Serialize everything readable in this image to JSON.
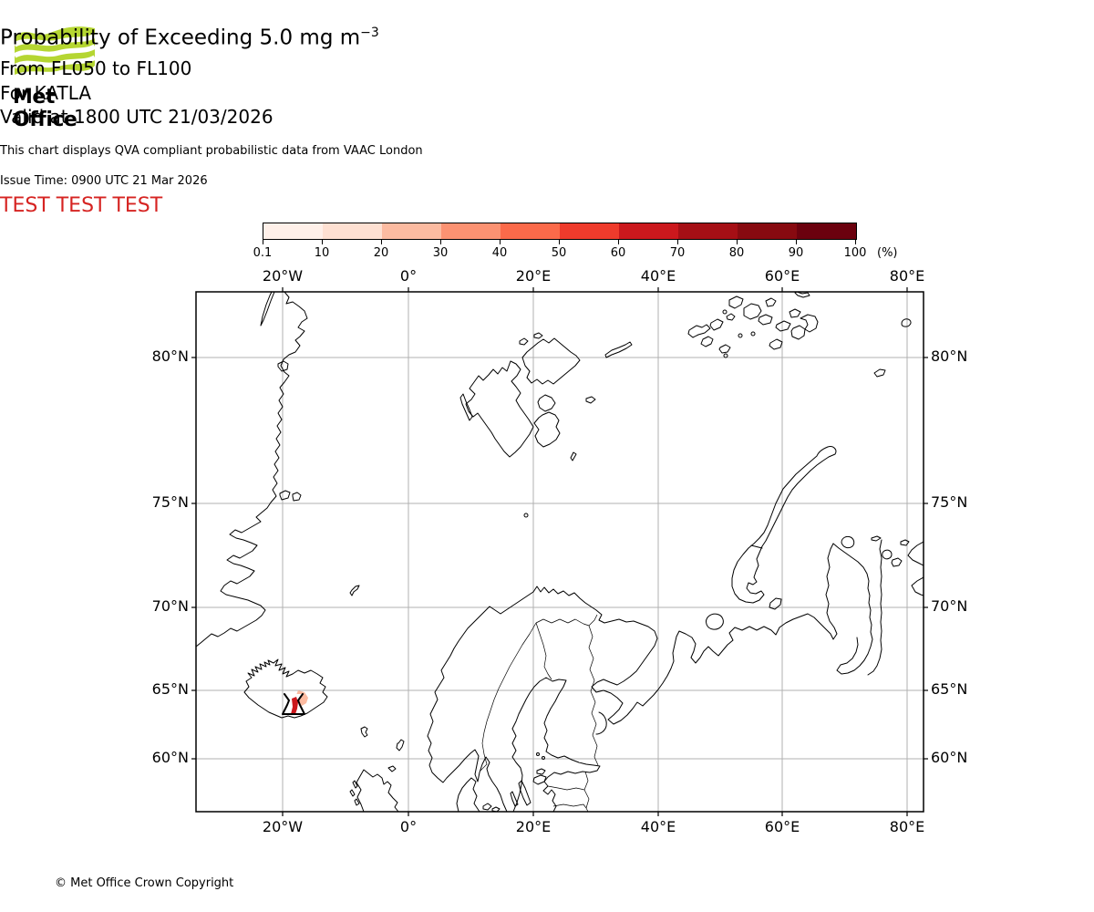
{
  "logo": {
    "text": "Met Office",
    "green": "#b5d632"
  },
  "titles": {
    "main_prefix": "Probability of Exceeding 5.0 mg m",
    "main_superscript": "−3",
    "line2": "From FL050 to FL100",
    "line3": "For KATLA",
    "line4": "Valid at 1800 UTC 21/03/2026",
    "note": "This chart displays QVA compliant probabilistic data from VAAC London",
    "issue": "Issue Time: 0900 UTC 21 Mar 2026",
    "test_banner": "TEST TEST TEST",
    "test_color": "#d62422"
  },
  "colorbar": {
    "tick_labels": [
      "0.1",
      "10",
      "20",
      "30",
      "40",
      "50",
      "60",
      "70",
      "80",
      "90",
      "100"
    ],
    "unit": "(%)",
    "colors": [
      "#fff0e9",
      "#fee0d2",
      "#fcbba1",
      "#fc9272",
      "#fb6a4a",
      "#ef3b2c",
      "#cb181d",
      "#a50f15",
      "#870a10",
      "#6b010e"
    ]
  },
  "map": {
    "lon_labels": [
      "20°W",
      "0°",
      "20°E",
      "40°E",
      "60°E",
      "80°E"
    ],
    "lat_labels": [
      "80°N",
      "75°N",
      "70°N",
      "65°N",
      "60°N"
    ],
    "volcano_symbol": "volcano-triangle-marker"
  },
  "chart_data": {
    "type": "heatmap",
    "title": "Probability of Exceeding 5.0 mg m⁻³",
    "legend": {
      "units": "%",
      "bin_edges": [
        0.1,
        10,
        20,
        30,
        40,
        50,
        60,
        70,
        80,
        90,
        100
      ],
      "position": "top"
    },
    "lon_ticks": [
      "20°W",
      "0°",
      "20°E",
      "40°E",
      "60°E",
      "80°E"
    ],
    "lat_ticks": [
      "80°N",
      "75°N",
      "70°N",
      "65°N",
      "60°N"
    ],
    "features": [
      {
        "name": "probability-area",
        "description": "small exceedance area at the KATLA volcano marker in southern Iceland: dark red (high probability) patch at the marker with a light pink (low probability) fringe to its northeast"
      }
    ]
  },
  "footer": {
    "copyright": "© Met Office Crown Copyright"
  }
}
